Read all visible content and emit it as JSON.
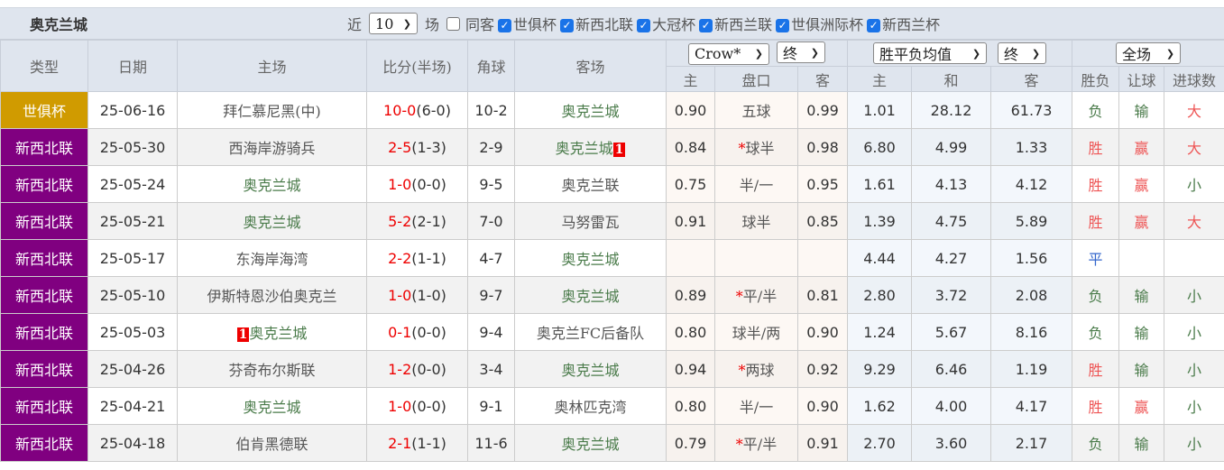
{
  "title": "奥克兰城",
  "filters": {
    "recent_prefix": "近",
    "recent_count": "10",
    "recent_suffix": "场",
    "same_venue": "同客",
    "same_venue_checked": false,
    "competitions": [
      {
        "label": "世俱杯",
        "checked": true
      },
      {
        "label": "新西北联",
        "checked": true
      },
      {
        "label": "大冠杯",
        "checked": true
      },
      {
        "label": "新西兰联",
        "checked": true
      },
      {
        "label": "世俱洲际杯",
        "checked": true
      },
      {
        "label": "新西兰杯",
        "checked": true
      }
    ]
  },
  "headers": {
    "type": "类型",
    "date": "日期",
    "home": "主场",
    "score": "比分(半场)",
    "corner": "角球",
    "away": "客场",
    "ah_company": "Crow*",
    "ah_stage": "终",
    "eu_type": "胜平负均值",
    "eu_stage": "终",
    "period": "全场",
    "ah_home": "主",
    "ah_line": "盘口",
    "ah_away": "客",
    "eu_home": "主",
    "eu_draw": "和",
    "eu_away": "客",
    "result": "胜负",
    "handicap": "让球",
    "goals": "进球数"
  },
  "colors": {
    "世俱杯": "#d09b00",
    "新西北联": "#800080"
  },
  "rows": [
    {
      "type": "世俱杯",
      "date": "25-06-16",
      "home": "拜仁慕尼黑(中)",
      "home_hl": false,
      "score": "10-0",
      "half": "(6-0)",
      "corner": "10-2",
      "away": "奥克兰城",
      "away_hl": true,
      "ah_h": "0.90",
      "ah_line": "五球",
      "ah_star": false,
      "ah_a": "0.99",
      "eu_h": "1.01",
      "eu_d": "28.12",
      "eu_a": "61.73",
      "result": "负",
      "hc": "输",
      "goals": "大"
    },
    {
      "type": "新西北联",
      "date": "25-05-30",
      "home": "西海岸游骑兵",
      "home_hl": false,
      "score": "2-5",
      "half": "(1-3)",
      "corner": "2-9",
      "away": "奥克兰城",
      "away_hl": true,
      "away_badge": "1",
      "ah_h": "0.84",
      "ah_line": "球半",
      "ah_star": true,
      "ah_a": "0.98",
      "eu_h": "6.80",
      "eu_d": "4.99",
      "eu_a": "1.33",
      "result": "胜",
      "hc": "赢",
      "goals": "大"
    },
    {
      "type": "新西北联",
      "date": "25-05-24",
      "home": "奥克兰城",
      "home_hl": true,
      "score": "1-0",
      "half": "(0-0)",
      "corner": "9-5",
      "away": "奥克兰联",
      "away_hl": false,
      "ah_h": "0.75",
      "ah_line": "半/一",
      "ah_star": false,
      "ah_a": "0.95",
      "eu_h": "1.61",
      "eu_d": "4.13",
      "eu_a": "4.12",
      "result": "胜",
      "hc": "赢",
      "goals": "小"
    },
    {
      "type": "新西北联",
      "date": "25-05-21",
      "home": "奥克兰城",
      "home_hl": true,
      "score": "5-2",
      "half": "(2-1)",
      "corner": "7-0",
      "away": "马努雷瓦",
      "away_hl": false,
      "ah_h": "0.91",
      "ah_line": "球半",
      "ah_star": false,
      "ah_a": "0.85",
      "eu_h": "1.39",
      "eu_d": "4.75",
      "eu_a": "5.89",
      "result": "胜",
      "hc": "赢",
      "goals": "大"
    },
    {
      "type": "新西北联",
      "date": "25-05-17",
      "home": "东海岸海湾",
      "home_hl": false,
      "score": "2-2",
      "half": "(1-1)",
      "corner": "4-7",
      "away": "奥克兰城",
      "away_hl": true,
      "ah_h": "",
      "ah_line": "",
      "ah_star": false,
      "ah_a": "",
      "eu_h": "4.44",
      "eu_d": "4.27",
      "eu_a": "1.56",
      "result": "平",
      "hc": "",
      "goals": ""
    },
    {
      "type": "新西北联",
      "date": "25-05-10",
      "home": "伊斯特恩沙伯奥克兰",
      "home_hl": false,
      "score": "1-0",
      "half": "(1-0)",
      "corner": "9-7",
      "away": "奥克兰城",
      "away_hl": true,
      "ah_h": "0.89",
      "ah_line": "平/半",
      "ah_star": true,
      "ah_a": "0.81",
      "eu_h": "2.80",
      "eu_d": "3.72",
      "eu_a": "2.08",
      "result": "负",
      "hc": "输",
      "goals": "小"
    },
    {
      "type": "新西北联",
      "date": "25-05-03",
      "home": "奥克兰城",
      "home_hl": true,
      "home_badge": "1",
      "score": "0-1",
      "half": "(0-0)",
      "corner": "9-4",
      "away": "奥克兰FC后备队",
      "away_hl": false,
      "ah_h": "0.80",
      "ah_line": "球半/两",
      "ah_star": false,
      "ah_a": "0.90",
      "eu_h": "1.24",
      "eu_d": "5.67",
      "eu_a": "8.16",
      "result": "负",
      "hc": "输",
      "goals": "小"
    },
    {
      "type": "新西北联",
      "date": "25-04-26",
      "home": "芬奇布尔斯联",
      "home_hl": false,
      "score": "1-2",
      "half": "(0-0)",
      "corner": "3-4",
      "away": "奥克兰城",
      "away_hl": true,
      "ah_h": "0.94",
      "ah_line": "两球",
      "ah_star": true,
      "ah_a": "0.92",
      "eu_h": "9.29",
      "eu_d": "6.46",
      "eu_a": "1.19",
      "result": "胜",
      "hc": "输",
      "goals": "小"
    },
    {
      "type": "新西北联",
      "date": "25-04-21",
      "home": "奥克兰城",
      "home_hl": true,
      "score": "1-0",
      "half": "(0-0)",
      "corner": "9-1",
      "away": "奥林匹克湾",
      "away_hl": false,
      "ah_h": "0.80",
      "ah_line": "半/一",
      "ah_star": false,
      "ah_a": "0.90",
      "eu_h": "1.62",
      "eu_d": "4.00",
      "eu_a": "4.17",
      "result": "胜",
      "hc": "赢",
      "goals": "小"
    },
    {
      "type": "新西北联",
      "date": "25-04-18",
      "home": "伯肯黑德联",
      "home_hl": false,
      "score": "2-1",
      "half": "(1-1)",
      "corner": "11-6",
      "away": "奥克兰城",
      "away_hl": true,
      "ah_h": "0.79",
      "ah_line": "平/半",
      "ah_star": true,
      "ah_a": "0.91",
      "eu_h": "2.70",
      "eu_d": "3.60",
      "eu_a": "2.17",
      "result": "负",
      "hc": "输",
      "goals": "小"
    }
  ]
}
